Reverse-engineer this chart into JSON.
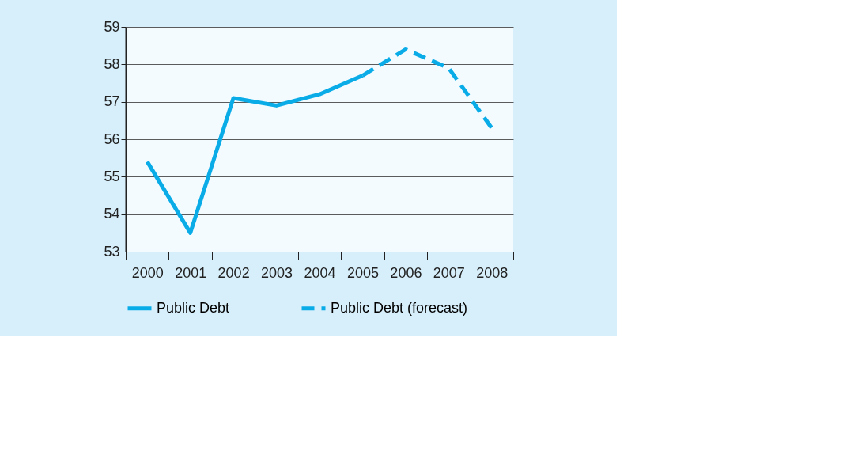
{
  "chart_data": {
    "type": "line",
    "categories": [
      "2000",
      "2001",
      "2002",
      "2003",
      "2004",
      "2005",
      "2006",
      "2007",
      "2008"
    ],
    "series": [
      {
        "name": "Public Debt",
        "color": "#0aace8",
        "line_style": "solid",
        "values": [
          55.4,
          53.5,
          57.1,
          56.9,
          57.2,
          57.7,
          null,
          null,
          null
        ]
      },
      {
        "name": "Public Debt (forecast)",
        "color": "#0aace8",
        "line_style": "dashed",
        "values": [
          null,
          null,
          null,
          null,
          null,
          57.7,
          58.4,
          57.9,
          56.3
        ]
      }
    ],
    "ylim": [
      53,
      59
    ],
    "yticks": [
      53,
      54,
      55,
      56,
      57,
      58,
      59
    ],
    "grid": "y",
    "legend": "bottom",
    "marker": "none"
  }
}
